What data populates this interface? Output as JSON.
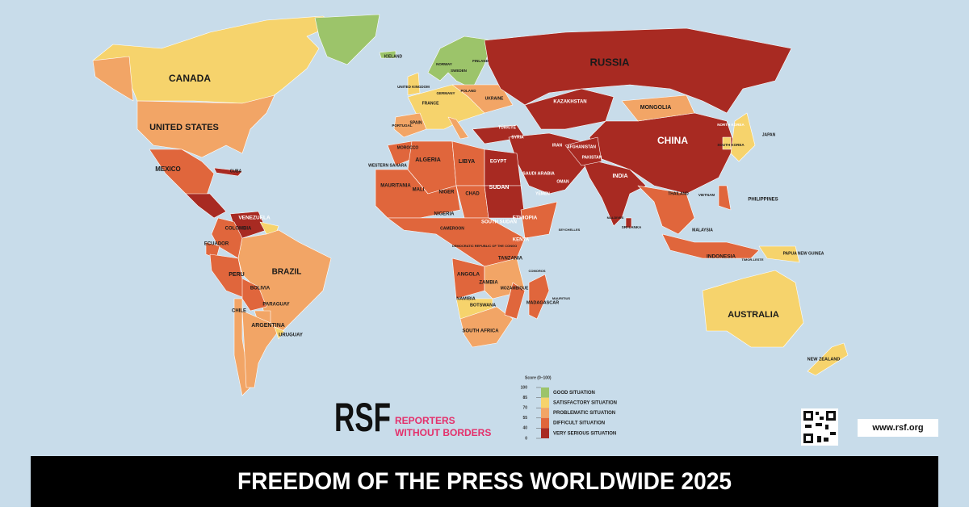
{
  "title": "FREEDOM OF THE PRESS WORLDWIDE 2025",
  "logo": {
    "mark": "RSF",
    "line1": "REPORTERS",
    "line2": "WITHOUT BORDERS"
  },
  "url": "www.rsf.org",
  "legend": {
    "title": "Score (0–100)",
    "ticks": [
      100,
      85,
      70,
      55,
      40,
      0
    ],
    "items": [
      {
        "label": "GOOD SITUATION",
        "color": "#9cc46a"
      },
      {
        "label": "SATISFACTORY SITUATION",
        "color": "#f6d36c"
      },
      {
        "label": "PROBLEMATIC SITUATION",
        "color": "#f2a566"
      },
      {
        "label": "DIFFICULT SITUATION",
        "color": "#e0663c"
      },
      {
        "label": "VERY SERIOUS SITUATION",
        "color": "#a82a22"
      }
    ]
  },
  "countries": [
    "RUSSIA",
    "CANADA",
    "UNITED STATES",
    "MEXICO",
    "CUBA",
    "VENEZUELA",
    "COLOMBIA",
    "ECUADOR",
    "PERU",
    "BRAZIL",
    "BOLIVIA",
    "PARAGUAY",
    "CHILE",
    "ARGENTINA",
    "URUGUAY",
    "ICELAND",
    "NORWAY",
    "SWEDEN",
    "FINLAND",
    "UNITED KINGDOM",
    "FRANCE",
    "GERMANY",
    "POLAND",
    "UKRAINE",
    "SPAIN",
    "PORTUGAL",
    "TÜRKIYE",
    "SYRIA",
    "IRAN",
    "SAUDI ARABIA",
    "EGYPT",
    "LIBYA",
    "ALGERIA",
    "MOROCCO",
    "WESTERN SAHARA",
    "MAURITANIA",
    "MALI",
    "NIGER",
    "CHAD",
    "SUDAN",
    "SOUTH SUDAN",
    "ETHIOPIA",
    "KENYA",
    "TANZANIA",
    "NIGERIA",
    "CAMEROON",
    "DEMOCRATIC REPUBLIC OF THE CONGO",
    "ANGOLA",
    "ZAMBIA",
    "NAMIBIA",
    "BOTSWANA",
    "SOUTH AFRICA",
    "MOZAMBIQUE",
    "MADAGASCAR",
    "KAZAKHSTAN",
    "MONGOLIA",
    "CHINA",
    "INDIA",
    "PAKISTAN",
    "AFGHANISTAN",
    "JAPAN",
    "SOUTH KOREA",
    "NORTH KOREA",
    "PHILIPPINES",
    "INDONESIA",
    "MALAYSIA",
    "THAILAND",
    "VIETNAM",
    "AUSTRALIA",
    "NEW ZEALAND",
    "PAPUA NEW GUINEA",
    "YEMEN",
    "OMAN",
    "SRI LANKA",
    "MALDIVES",
    "SEYCHELLES",
    "MAURITIUS",
    "COMOROS",
    "TIMOR-LESTE"
  ]
}
